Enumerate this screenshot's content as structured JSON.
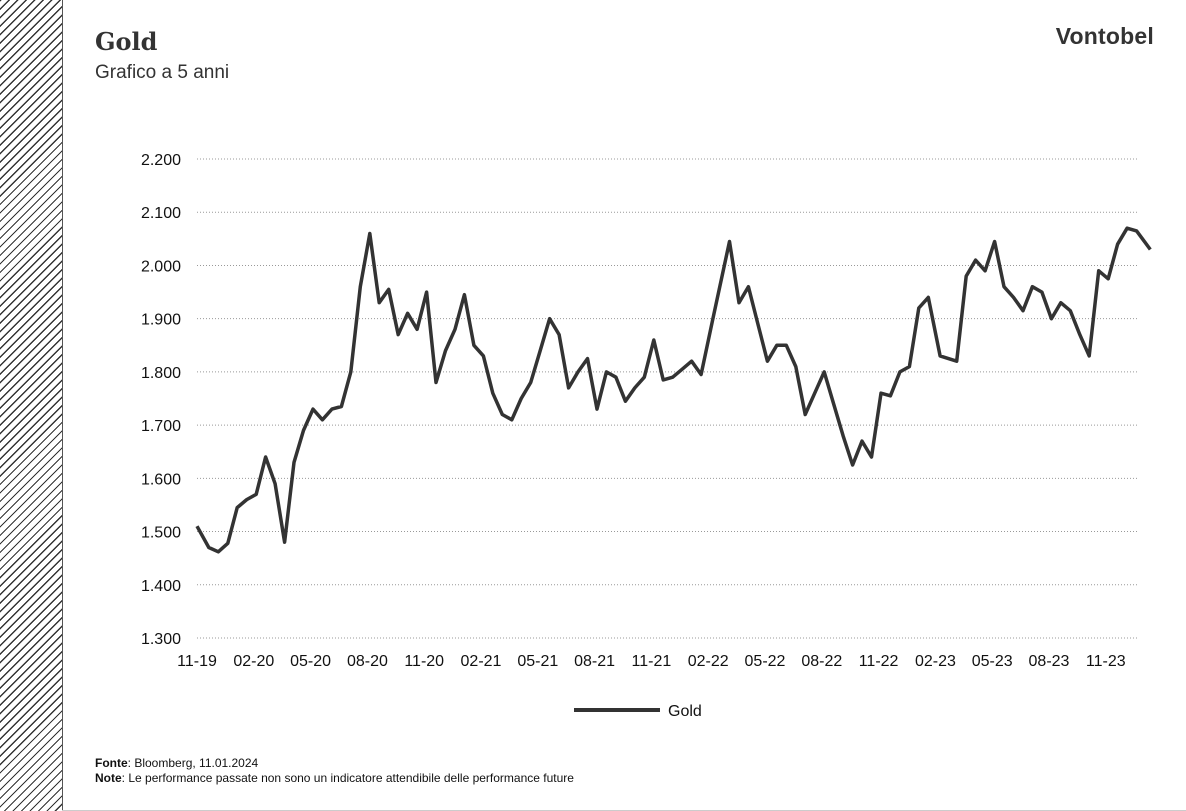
{
  "header": {
    "title": "Gold",
    "subtitle": "Grafico a 5 anni",
    "logo_text": "Vontobel"
  },
  "footer": {
    "source_label": "Fonte",
    "source_text": ": Bloomberg, 11.01.2024",
    "note_label": "Note",
    "note_text": ": Le performance passate non sono un indicatore attendibile delle performance future"
  },
  "colors": {
    "line": "#333333",
    "grid": "#999999"
  },
  "chart_data": {
    "type": "line",
    "title": "Gold",
    "subtitle": "Grafico a 5 anni",
    "ylim": [
      1300,
      2200
    ],
    "y_ticks": [
      {
        "value": 2200,
        "label": "2.200"
      },
      {
        "value": 2100,
        "label": "2.100"
      },
      {
        "value": 2000,
        "label": "2.000"
      },
      {
        "value": 1900,
        "label": "1.900"
      },
      {
        "value": 1800,
        "label": "1.800"
      },
      {
        "value": 1700,
        "label": "1.700"
      },
      {
        "value": 1600,
        "label": "1.600"
      },
      {
        "value": 1500,
        "label": "1.500"
      },
      {
        "value": 1400,
        "label": "1.400"
      },
      {
        "value": 1300,
        "label": "1.300"
      }
    ],
    "x_ticks": [
      "11-19",
      "02-20",
      "05-20",
      "08-20",
      "11-20",
      "02-21",
      "05-21",
      "08-21",
      "11-21",
      "02-22",
      "05-22",
      "08-22",
      "11-22",
      "02-23",
      "05-23",
      "08-23",
      "11-23"
    ],
    "xlim": [
      "2019-11",
      "2024-01-11"
    ],
    "grid": "horizontal dotted",
    "legend": "bottom-center",
    "series": [
      {
        "name": "Gold",
        "points": [
          [
            "2019-11",
            1510
          ],
          [
            "2019-11",
            1470
          ],
          [
            "2019-12",
            1462
          ],
          [
            "2019-12",
            1478
          ],
          [
            "2020-01",
            1545
          ],
          [
            "2020-01",
            1560
          ],
          [
            "2020-02",
            1570
          ],
          [
            "2020-02",
            1640
          ],
          [
            "2020-03",
            1590
          ],
          [
            "2020-03",
            1480
          ],
          [
            "2020-04",
            1630
          ],
          [
            "2020-04",
            1690
          ],
          [
            "2020-05",
            1730
          ],
          [
            "2020-05",
            1710
          ],
          [
            "2020-06",
            1730
          ],
          [
            "2020-06",
            1735
          ],
          [
            "2020-07",
            1800
          ],
          [
            "2020-07",
            1960
          ],
          [
            "2020-08",
            2060
          ],
          [
            "2020-08",
            1930
          ],
          [
            "2020-09",
            1955
          ],
          [
            "2020-09",
            1870
          ],
          [
            "2020-10",
            1910
          ],
          [
            "2020-10",
            1880
          ],
          [
            "2020-11",
            1950
          ],
          [
            "2020-11",
            1780
          ],
          [
            "2020-12",
            1840
          ],
          [
            "2020-12",
            1880
          ],
          [
            "2021-01",
            1945
          ],
          [
            "2021-01",
            1850
          ],
          [
            "2021-02",
            1830
          ],
          [
            "2021-02",
            1760
          ],
          [
            "2021-03",
            1720
          ],
          [
            "2021-03",
            1710
          ],
          [
            "2021-04",
            1750
          ],
          [
            "2021-04",
            1780
          ],
          [
            "2021-05",
            1840
          ],
          [
            "2021-05",
            1900
          ],
          [
            "2021-06",
            1870
          ],
          [
            "2021-06",
            1770
          ],
          [
            "2021-07",
            1800
          ],
          [
            "2021-07",
            1825
          ],
          [
            "2021-08",
            1730
          ],
          [
            "2021-08",
            1800
          ],
          [
            "2021-09",
            1790
          ],
          [
            "2021-09",
            1745
          ],
          [
            "2021-10",
            1770
          ],
          [
            "2021-10",
            1790
          ],
          [
            "2021-11",
            1860
          ],
          [
            "2021-11",
            1785
          ],
          [
            "2021-12",
            1790
          ],
          [
            "2021-12",
            1805
          ],
          [
            "2022-01",
            1820
          ],
          [
            "2022-01",
            1795
          ],
          [
            "2022-02",
            1900
          ],
          [
            "2022-03",
            2045
          ],
          [
            "2022-03",
            1930
          ],
          [
            "2022-04",
            1960
          ],
          [
            "2022-04",
            1890
          ],
          [
            "2022-05",
            1820
          ],
          [
            "2022-05",
            1850
          ],
          [
            "2022-06",
            1850
          ],
          [
            "2022-06",
            1810
          ],
          [
            "2022-07",
            1720
          ],
          [
            "2022-07",
            1760
          ],
          [
            "2022-08",
            1800
          ],
          [
            "2022-08",
            1740
          ],
          [
            "2022-09",
            1680
          ],
          [
            "2022-09",
            1625
          ],
          [
            "2022-10",
            1670
          ],
          [
            "2022-10",
            1640
          ],
          [
            "2022-11",
            1760
          ],
          [
            "2022-11",
            1755
          ],
          [
            "2022-12",
            1800
          ],
          [
            "2022-12",
            1810
          ],
          [
            "2023-01",
            1920
          ],
          [
            "2023-01",
            1940
          ],
          [
            "2023-02",
            1830
          ],
          [
            "2023-03",
            1820
          ],
          [
            "2023-03",
            1980
          ],
          [
            "2023-04",
            2010
          ],
          [
            "2023-04",
            1990
          ],
          [
            "2023-05",
            2045
          ],
          [
            "2023-05",
            1960
          ],
          [
            "2023-06",
            1940
          ],
          [
            "2023-06",
            1915
          ],
          [
            "2023-07",
            1960
          ],
          [
            "2023-07",
            1950
          ],
          [
            "2023-08",
            1900
          ],
          [
            "2023-08",
            1930
          ],
          [
            "2023-09",
            1915
          ],
          [
            "2023-09",
            1870
          ],
          [
            "2023-10",
            1830
          ],
          [
            "2023-10",
            1990
          ],
          [
            "2023-11",
            1975
          ],
          [
            "2023-11",
            2040
          ],
          [
            "2023-12",
            2070
          ],
          [
            "2023-12",
            2065
          ],
          [
            "2024-01",
            2030
          ]
        ]
      }
    ]
  }
}
